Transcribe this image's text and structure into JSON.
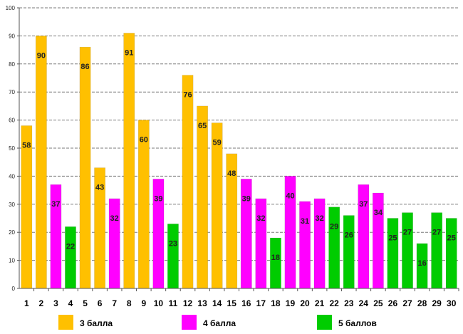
{
  "chart_data": {
    "type": "bar",
    "title": "",
    "xlabel": "",
    "ylabel": "",
    "ylim": [
      0,
      100
    ],
    "yticks": [
      0,
      10,
      20,
      30,
      40,
      50,
      60,
      70,
      80,
      90,
      100
    ],
    "categories": [
      "1",
      "2",
      "3",
      "4",
      "5",
      "6",
      "7",
      "8",
      "9",
      "10",
      "11",
      "12",
      "13",
      "14",
      "15",
      "16",
      "17",
      "18",
      "19",
      "20",
      "21",
      "22",
      "23",
      "24",
      "25",
      "26",
      "27",
      "28",
      "29",
      "30"
    ],
    "values": [
      58,
      90,
      37,
      22,
      86,
      43,
      32,
      91,
      60,
      39,
      23,
      76,
      65,
      59,
      48,
      39,
      32,
      18,
      40,
      31,
      32,
      29,
      26,
      37,
      34,
      25,
      27,
      16,
      27,
      25
    ],
    "grades": [
      "3",
      "3",
      "4",
      "5",
      "3",
      "3",
      "4",
      "3",
      "3",
      "4",
      "5",
      "3",
      "3",
      "3",
      "3",
      "4",
      "4",
      "5",
      "4",
      "4",
      "4",
      "5",
      "5",
      "4",
      "4",
      "5",
      "5",
      "5",
      "5",
      "5"
    ],
    "series_colors": {
      "3": "#FFC000",
      "4": "#FF00FF",
      "5": "#00CC00"
    },
    "legend": [
      {
        "key": "3",
        "label": "3 балла"
      },
      {
        "key": "4",
        "label": "4 балла"
      },
      {
        "key": "5",
        "label": "5 баллов"
      }
    ],
    "legend_position": "bottom"
  }
}
